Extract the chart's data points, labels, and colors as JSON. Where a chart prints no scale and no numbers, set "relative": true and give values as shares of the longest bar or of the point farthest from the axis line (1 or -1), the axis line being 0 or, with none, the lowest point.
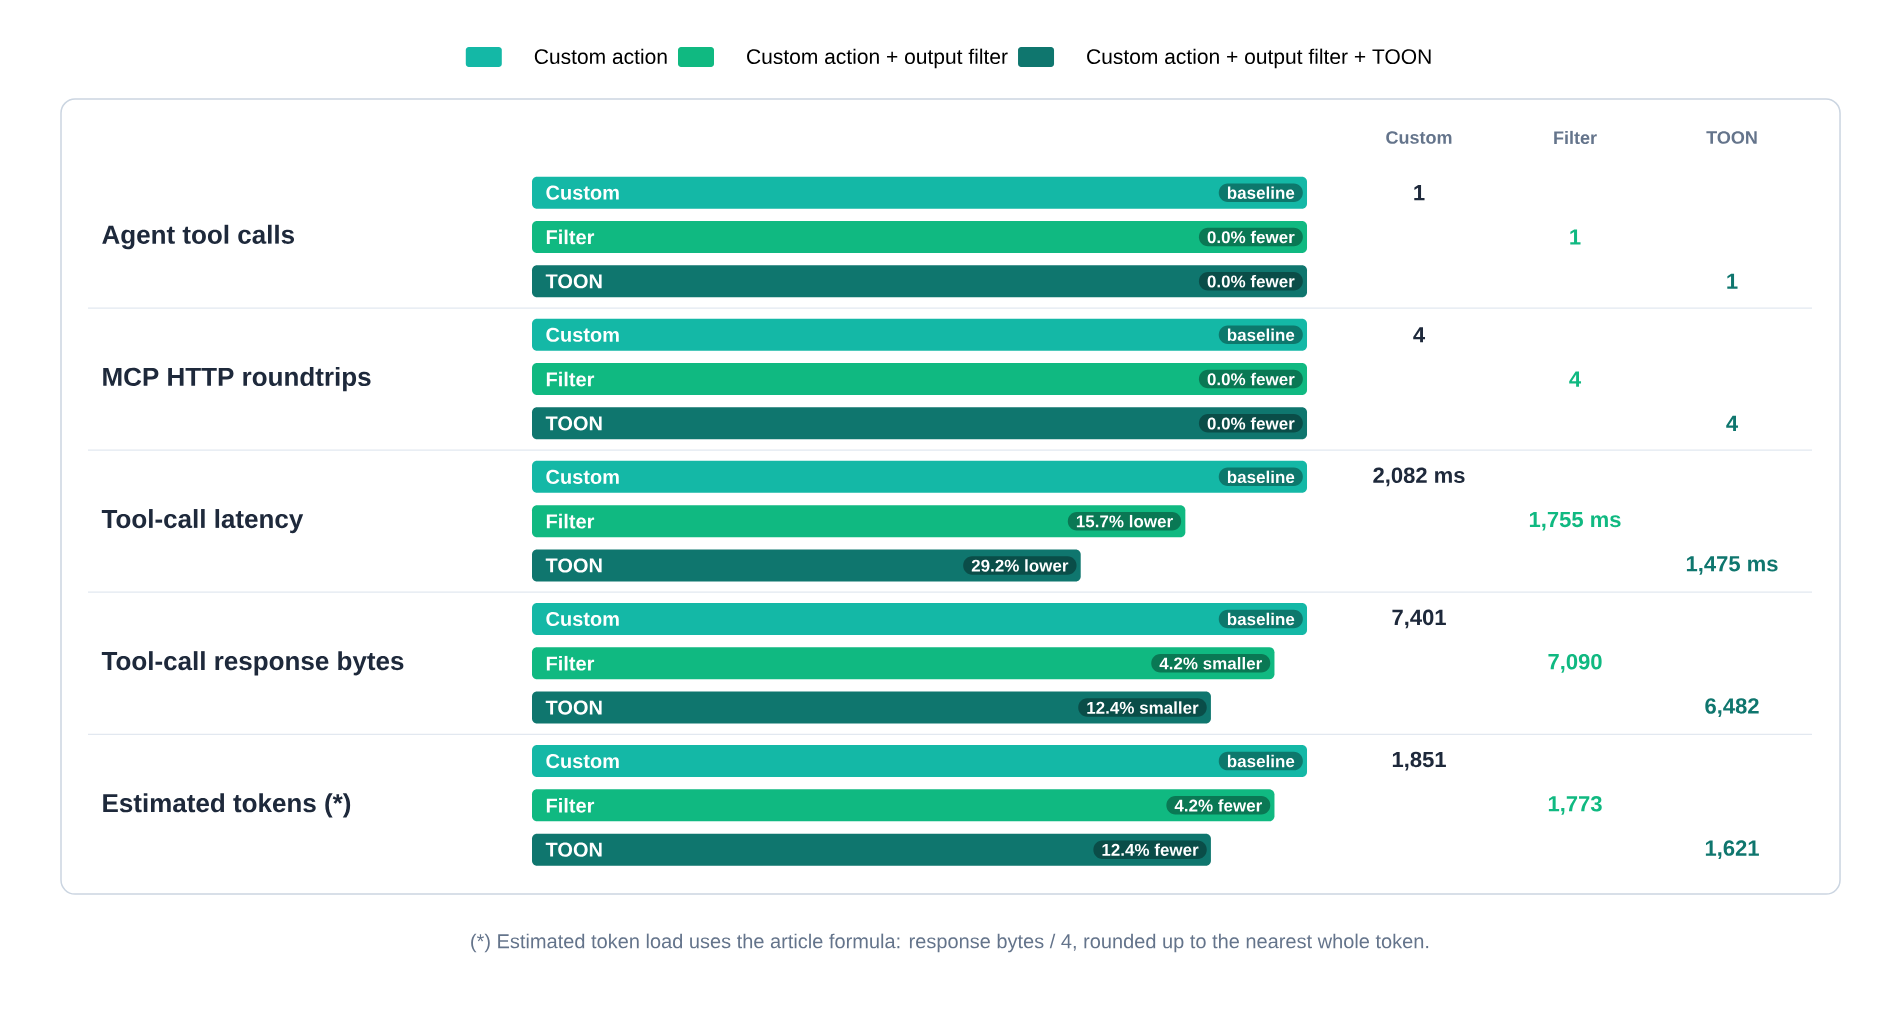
{
  "chart_data": {
    "type": "bar",
    "orientation": "horizontal",
    "relative": true,
    "legend": "top",
    "categories": [
      "Agent tool calls",
      "MCP HTTP roundtrips",
      "Tool-call latency",
      "Tool-call response bytes",
      "Estimated tokens (*)"
    ],
    "series": [
      {
        "name": "Custom action",
        "color": "#14b8a6",
        "values": [
          1,
          1,
          1,
          1,
          1
        ]
      },
      {
        "name": "Custom action + output filter",
        "color": "#10b981",
        "values": [
          1,
          1,
          0.843,
          0.958,
          0.958
        ]
      },
      {
        "name": "Custom action + output filter + TOON",
        "color": "#0f766e",
        "values": [
          1,
          1,
          0.708,
          0.876,
          0.876
        ]
      }
    ],
    "annotations": [
      "Custom",
      "Filter",
      "TOON",
      "1",
      "1",
      "1",
      "4",
      "4",
      "4",
      "2,082 ms",
      "1,755 ms",
      "1,475 ms",
      "7,401",
      "7,090",
      "6,482",
      "1,851",
      "1,773",
      "1,621",
      "(*) Estimated token load uses the article formula: response bytes / 4, rounded up to the nearest whole token.",
      "Custom",
      "baseline",
      "Filter",
      "0.0% fewer",
      "TOON",
      "0.0% fewer",
      "Custom",
      "baseline",
      "Filter",
      "0.0% fewer",
      "TOON",
      "0.0% fewer",
      "Custom",
      "baseline",
      "Filter",
      "15.7% lower",
      "TOON",
      "29.2% lower",
      "Custom",
      "baseline",
      "Filter",
      "4.2% smaller",
      "TOON",
      "12.4% smaller",
      "Custom",
      "baseline",
      "Filter",
      "4.2% fewer",
      "TOON",
      "12.4% fewer"
    ]
  }
}
